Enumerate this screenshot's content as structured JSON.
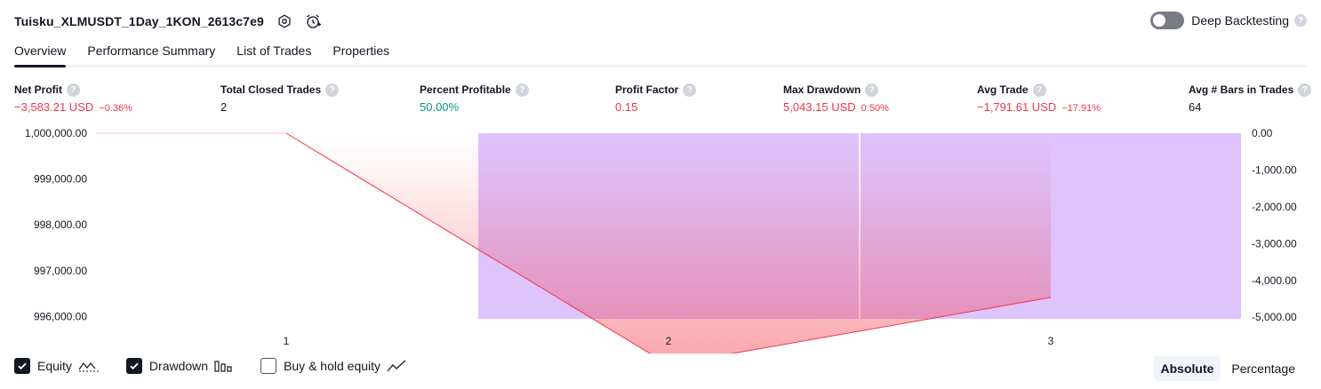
{
  "header": {
    "strategy_name": "Tuisku_XLMUSDT_1Day_1KON_2613c7e9",
    "deep_backtesting_label": "Deep Backtesting"
  },
  "tabs": [
    {
      "label": "Overview",
      "active": true
    },
    {
      "label": "Performance Summary",
      "active": false
    },
    {
      "label": "List of Trades",
      "active": false
    },
    {
      "label": "Properties",
      "active": false
    }
  ],
  "metrics": {
    "net_profit": {
      "label": "Net Profit",
      "value": "−3,583.21 USD",
      "pct": "−0.36%"
    },
    "total_closed_trades": {
      "label": "Total Closed Trades",
      "value": "2"
    },
    "percent_profitable": {
      "label": "Percent Profitable",
      "value": "50.00%"
    },
    "profit_factor": {
      "label": "Profit Factor",
      "value": "0.15"
    },
    "max_drawdown": {
      "label": "Max Drawdown",
      "value": "5,043.15 USD",
      "pct": "0.50%"
    },
    "avg_trade": {
      "label": "Avg Trade",
      "value": "−1,791.61 USD",
      "pct": "−17.91%"
    },
    "avg_bars": {
      "label": "Avg # Bars in Trades",
      "value": "64"
    }
  },
  "chart_data": {
    "type": "line",
    "x": [
      1,
      2,
      3
    ],
    "x_tick_labels": [
      "1",
      "2",
      "3"
    ],
    "series": [
      {
        "values": [
          1000000.0,
          994949.05,
          996416.79
        ],
        "axis": "left",
        "color": "#f23645"
      },
      {
        "values": [
          0,
          -5043.15,
          -5043.15
        ],
        "axis": "right",
        "type": "bar",
        "color": "#dec3fc"
      }
    ],
    "left_axis": {
      "ylim": [
        995950,
        1000000
      ],
      "ticks": [
        "1,000,000.00",
        "999,000.00",
        "998,000.00",
        "997,000.00",
        "996,000.00"
      ]
    },
    "right_axis": {
      "ylim": [
        -5043.15,
        0
      ],
      "ticks": [
        "0.00",
        "-1,000.00",
        "-2,000.00",
        "-3,000.00",
        "-4,000.00",
        "-5,000.00"
      ]
    }
  },
  "legend": {
    "equity": {
      "label": "Equity",
      "checked": true
    },
    "drawdown": {
      "label": "Drawdown",
      "checked": true
    },
    "buy_hold": {
      "label": "Buy & hold equity",
      "checked": false
    }
  },
  "mode": {
    "absolute": "Absolute",
    "percentage": "Percentage",
    "active": "absolute"
  },
  "colors": {
    "negative": "#f23645",
    "positive": "#089981",
    "drawdown_fill": "#dec3fc",
    "equity_line": "#f23645"
  }
}
